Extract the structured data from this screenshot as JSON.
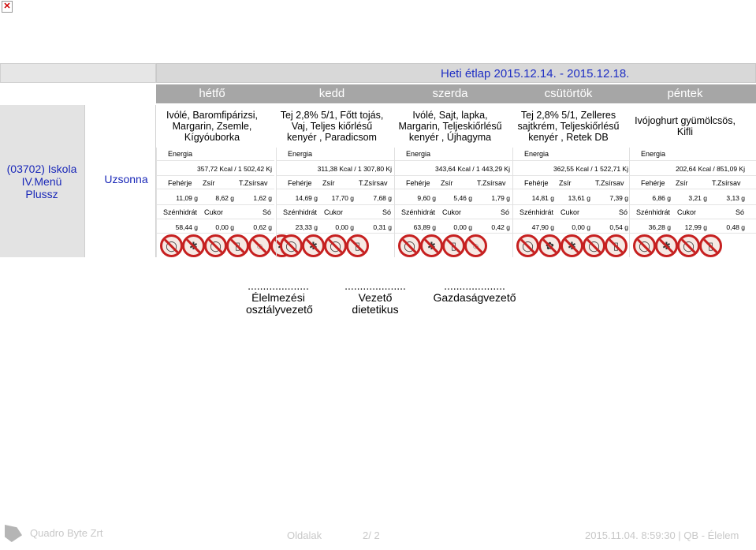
{
  "header": {
    "title": "Heti étlap 2015.12.14. - 2015.12.18."
  },
  "days": [
    "hétfő",
    "kedd",
    "szerda",
    "csütörtök",
    "péntek"
  ],
  "left": {
    "school_line1": "(03702) Iskola",
    "school_line2": "IV.Menü",
    "school_line3": "Plussz",
    "meal": "Uzsonna"
  },
  "labels": {
    "energia": "Energia",
    "feherje": "Fehérje",
    "zsir": "Zsír",
    "tzsirsav": "T.Zsírsav",
    "szenhidrat": "Szénhidrát",
    "cukor": "Cukor",
    "so": "Só"
  },
  "menus": [
    {
      "text": "Ivólé, Baromfipárizsi, Margarin, Zsemle, Kígyóuborka",
      "energia": "357,72 Kcal / 1 502,42 Kj",
      "feherje": "11,09 g",
      "zsir": "8,62 g",
      "tzsirsav": "1,62 g",
      "szenhidrat": "58,44 g",
      "cukor": "0,00 g",
      "so": "0,62 g",
      "icons": [
        "egg-allergen-icon",
        "gluten-allergen-icon",
        "egg-allergen-icon",
        "milk-allergen-icon",
        "soy-allergen-icon",
        "gluten-allergen-icon"
      ]
    },
    {
      "text": "Tej 2,8% 5/1, Főtt tojás, Vaj, Teljes kiőrlésű kenyér , Paradicsom",
      "energia": "311,38 Kcal / 1 307,80 Kj",
      "feherje": "14,69 g",
      "zsir": "17,70 g",
      "tzsirsav": "7,68 g",
      "szenhidrat": "23,33 g",
      "cukor": "0,00 g",
      "so": "0,31 g",
      "icons": [
        "egg-allergen-icon",
        "gluten-allergen-icon",
        "egg-allergen-icon",
        "milk-allergen-icon"
      ]
    },
    {
      "text": "Ivólé, Sajt, lapka, Margarin, Teljeskiőrlésű kenyér , Újhagyma",
      "energia": "343,64 Kcal / 1 443,29 Kj",
      "feherje": "9,60 g",
      "zsir": "5,46 g",
      "tzsirsav": "1,79 g",
      "szenhidrat": "63,89 g",
      "cukor": "0,00 g",
      "so": "0,42 g",
      "icons": [
        "egg-allergen-icon",
        "gluten-allergen-icon",
        "milk-allergen-icon",
        "soy-allergen-icon"
      ]
    },
    {
      "text": "Tej 2,8% 5/1, Zelleres sajtkrém, Teljeskiőrlésű kenyér , Retek DB",
      "energia": "362,55 Kcal / 1 522,71 Kj",
      "feherje": "14,81 g",
      "zsir": "13,61 g",
      "tzsirsav": "7,39 g",
      "szenhidrat": "47,90 g",
      "cukor": "0,00 g",
      "so": "0,54 g",
      "icons": [
        "egg-allergen-icon",
        "celery-allergen-icon",
        "gluten-allergen-icon",
        "egg-allergen-icon",
        "milk-allergen-icon"
      ]
    },
    {
      "text": "Ivójoghurt gyümölcsös, Kifli",
      "energia": "202,64 Kcal / 851,09 Kj",
      "feherje": "6,86 g",
      "zsir": "3,21 g",
      "tzsirsav": "3,13 g",
      "szenhidrat": "36,28 g",
      "cukor": "12,99 g",
      "so": "0,48 g",
      "icons": [
        "egg-allergen-icon",
        "gluten-allergen-icon",
        "egg-allergen-icon",
        "milk-allergen-icon"
      ]
    }
  ],
  "signatures": [
    {
      "dots": "....................",
      "line1": "Élelmezési",
      "line2": "osztályvezető"
    },
    {
      "dots": "....................",
      "line1": "Vezető",
      "line2": "dietetikus"
    },
    {
      "dots": "....................",
      "line1": "Gazdaságvezető",
      "line2": ""
    }
  ],
  "footer": {
    "company": "Quadro Byte Zrt",
    "page_label": "Oldalak",
    "page": "2/ 2",
    "timestamp": "2015.11.04. 8:59:30 | QB - Élelem"
  },
  "colors": {
    "title_blue": "#1f2fc4",
    "day_band": "#a6a6a6",
    "allergen_red": "#c62020"
  }
}
